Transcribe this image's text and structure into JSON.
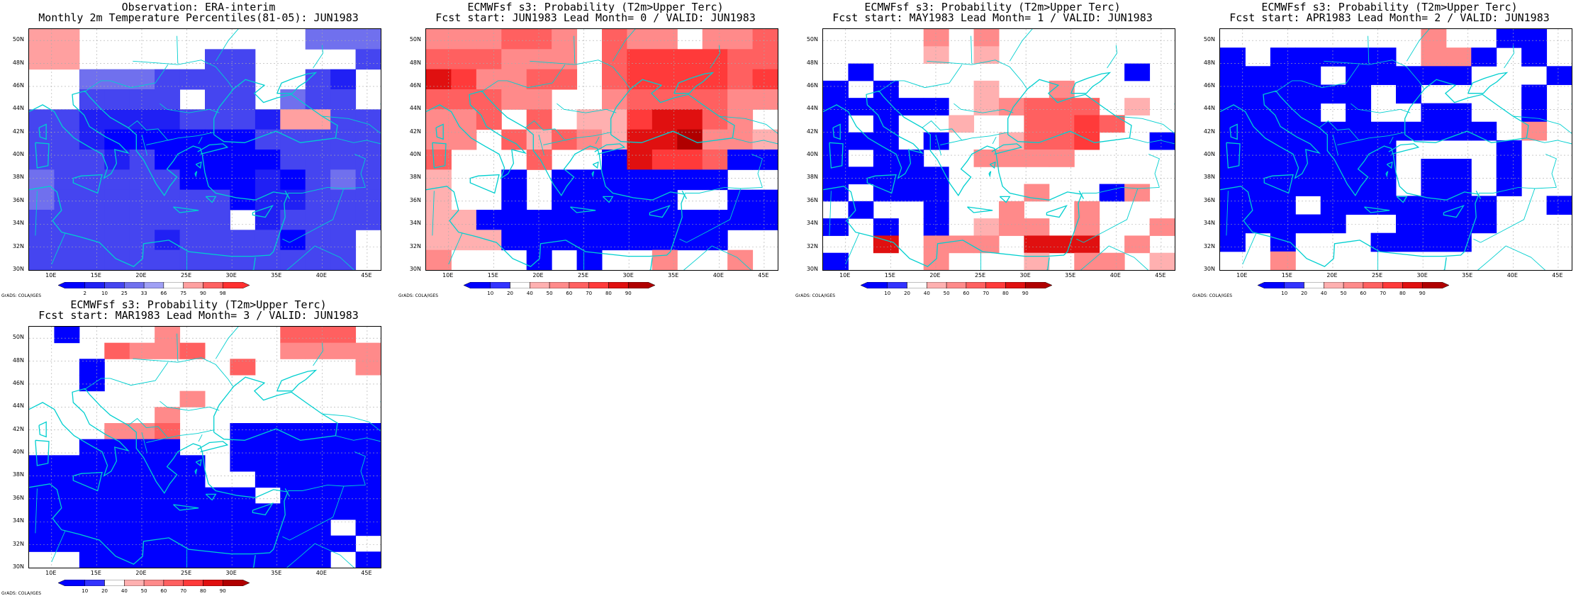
{
  "map_extent": {
    "lon": [
      7.5,
      46.5
    ],
    "lat": [
      30.0,
      51.0
    ]
  },
  "x_ticks": [
    "10E",
    "15E",
    "20E",
    "25E",
    "30E",
    "35E",
    "40E",
    "45E"
  ],
  "y_ticks": [
    "30N",
    "32N",
    "34N",
    "36N",
    "38N",
    "40N",
    "42N",
    "44N",
    "46N",
    "48N",
    "50N"
  ],
  "credit": "GrADS: COLA/IGES",
  "colors": {
    "obs": [
      "#0000ff",
      "#2020f4",
      "#4545f0",
      "#7070ee",
      "#a0a0f5",
      "#ffffff",
      "#ffa0a0",
      "#ff6060",
      "#ff3030"
    ],
    "prob": [
      "#0000ff",
      "#3333ff",
      "#ffffff",
      "#ffb0b0",
      "#ff8a8a",
      "#ff6060",
      "#ff3a3a",
      "#e01010",
      "#b00000"
    ],
    "coast": "#00cfcf"
  },
  "panels": [
    {
      "title1": "Observation: ERA-interim",
      "title2": "Monthly 2m Temperature Percentiles(81-05): JUN1983",
      "colorbar_labels": [
        "2",
        "10",
        "25",
        "33",
        "66",
        "75",
        "90",
        "98"
      ],
      "colorbar_kind": "obs",
      "grid": [
        "66.........444",
        "66.....33....3",
        "..4443333..32.",
        "..3333.33.433.",
        "33222233326633",
        "33211111133333",
        "33323111113333",
        "43333311121343",
        "43333333122333",
        "33333333.23333",
        "3333323333133.",
        "3333333333333."
      ]
    },
    {
      "title1": "ECMWFsf s3: Probability (T2m>Upper Terc)",
      "title2": "Fcst start: JUN1983  Lead Month= 0 / VALID: JUN1983",
      "colorbar_labels": [
        "10",
        "20",
        "40",
        "50",
        "60",
        "70",
        "80",
        "90"
      ],
      "colorbar_kind": "prob",
      "grid": [
        "444554.544.445",
        "555444.5666655",
        "764455.5666656",
        "55544..4555544",
        "445.5.3367754.",
        "44.53543778443",
        "5...5..1766511",
        "3..1.1111111..",
        "3..1.11111..11",
        "33111111111111",
        "333111111111..",
        "4...1.1..4..4."
      ]
    },
    {
      "title1": "ECMWFsf s3: Probability (T2m>Upper Terc)",
      "title2": "Fcst start: MAY1983  Lead Month= 1 / VALID: JUN1983",
      "colorbar_labels": [
        "10",
        "20",
        "40",
        "50",
        "60",
        "70",
        "80",
        "90"
      ],
      "colorbar_kind": "prob",
      "grid": [
        "....4.4.......",
        "....3.3.......",
        ".1..........1.",
        "1.1...3..4....",
        "11111.34555.3.",
        "1.1..3..5565..",
        "111.1..3556..1",
        "1.11..4444....",
        "11111.........",
        "1.111...4..14.",
        ".1..1..4..4...",
        "1.1.1.344.4..4",
        "..7.444.777.4.",
        "1...4...3.44.3"
      ]
    },
    {
      "title1": "ECMWFsf s3: Probability (T2m>Upper Terc)",
      "title2": "Fcst start: APR1983  Lead Month= 2 / VALID: JUN1983",
      "colorbar_labels": [
        "10",
        "20",
        "40",
        "50",
        "60",
        "70",
        "80",
        "90"
      ],
      "colorbar_kind": "prob",
      "grid": [
        "........4..11.",
        "1.11111.441.1.",
        "1111.11111...1",
        "111111.1....1.",
        "1111.1..11..1.",
        "11111111111.4.",
        "1111111....1..",
        "1111111.11.1..",
        "1111111.11.1..",
        "111.1111111..1",
        "11111..1111...",
        "1.1...1111....",
        "..4..........."
      ]
    },
    {
      "title1": "ECMWFsf s3: Probability (T2m>Upper Terc)",
      "title2": "Fcst start: MAR1983  Lead Month= 3 / VALID: JUN1983",
      "colorbar_labels": [
        "10",
        "20",
        "40",
        "50",
        "60",
        "70",
        "80",
        "90"
      ],
      "colorbar_kind": "prob",
      "grid": [
        ".1...4....555.",
        "...5445...4444",
        "..1.....5....4",
        "..1...........",
        "......4.......",
        ".....4........",
        "...445..111111",
        "..1111..111111",
        "1111111.111111",
        "1111111..11111",
        "111111111.1111",
        "11111111111111",
        "111111111111.1",
        "1111111111111.",
        "..1111111111.1"
      ]
    }
  ]
}
